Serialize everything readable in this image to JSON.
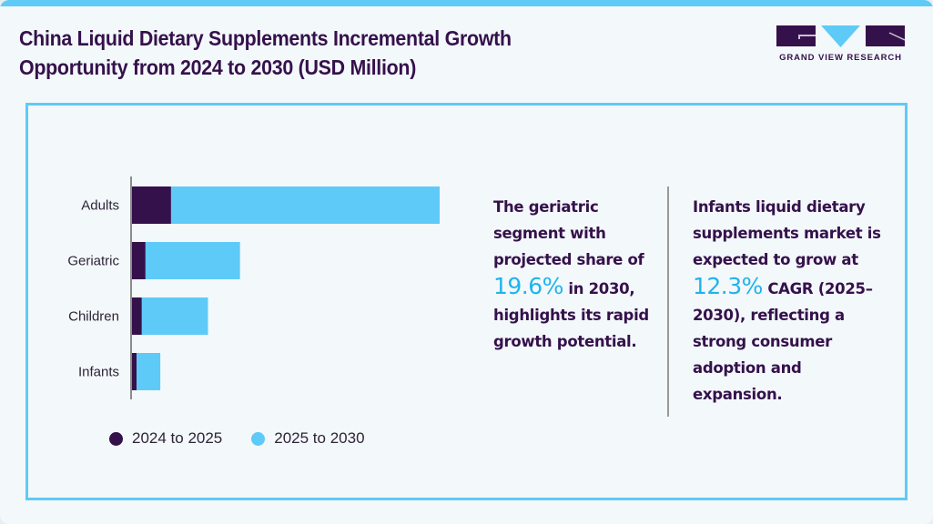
{
  "header": {
    "title_line1": "China Liquid Dietary Supplements Incremental Growth",
    "title_line2": "Opportunity from 2024 to 2030 (USD Million)"
  },
  "logo": {
    "text": "GRAND VIEW RESEARCH"
  },
  "colors": {
    "accent": "#5ecaf7",
    "brand_dark": "#35114b",
    "highlight": "#1eb4ec",
    "series_2024_2025": "#35114b",
    "series_2025_2030": "#5ecaf7"
  },
  "chart_data": {
    "type": "bar",
    "orientation": "horizontal",
    "stacked": true,
    "title": "China Liquid Dietary Supplements Incremental Growth Opportunity from 2024 to 2030 (USD Million)",
    "xlabel": "",
    "ylabel": "",
    "value_note": "No axis values shown; values are relative estimates (Adults total = 100)",
    "categories": [
      "Adults",
      "Geriatric",
      "Children",
      "Infants"
    ],
    "series": [
      {
        "name": "2024 to 2025",
        "values": [
          12.7,
          4.4,
          3.2,
          1.5
        ]
      },
      {
        "name": "2025 to 2030",
        "values": [
          87.3,
          30.7,
          21.5,
          7.7
        ]
      }
    ],
    "xlim": [
      0,
      100
    ],
    "grid": false,
    "legend": "bottom"
  },
  "legend": {
    "items": [
      {
        "label": "2024 to 2025"
      },
      {
        "label": "2025 to 2030"
      }
    ]
  },
  "insights": {
    "left": {
      "before": "The geriatric segment with projected share of",
      "highlight": "19.6%",
      "after": "in 2030, highlights its rapid growth potential."
    },
    "right": {
      "before": "Infants liquid dietary supplements market is expected to grow at",
      "highlight": "12.3%",
      "after": "CAGR (2025–2030), reflecting a strong consumer adoption and expansion."
    }
  }
}
